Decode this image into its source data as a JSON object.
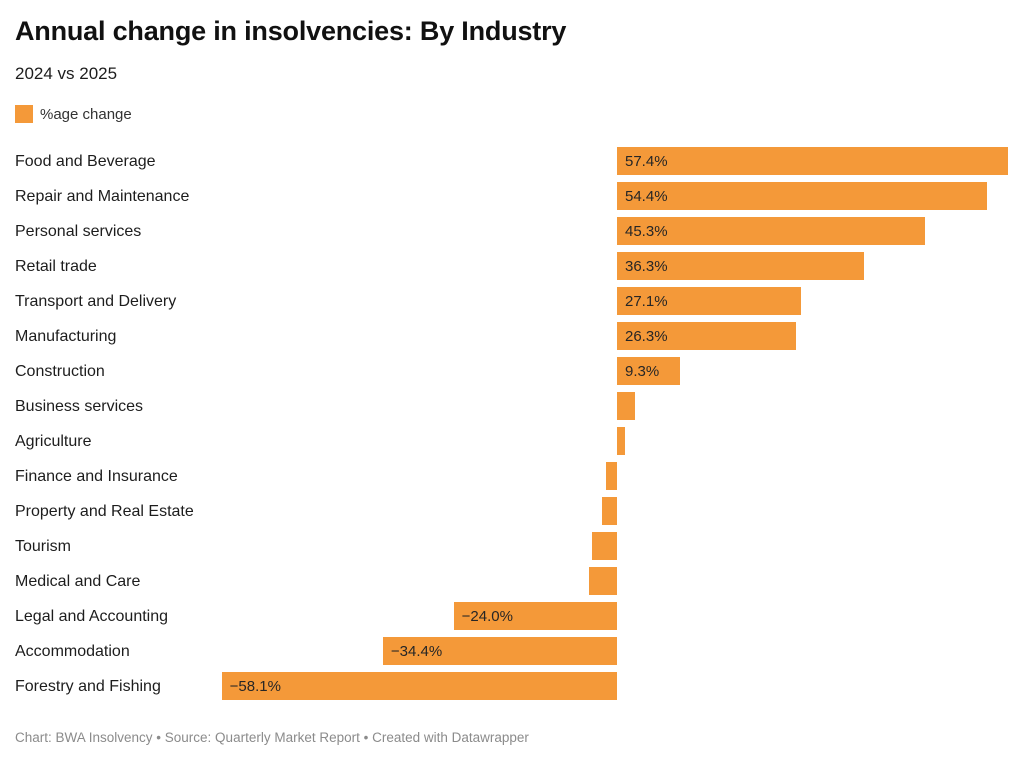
{
  "footer": {
    "text": "Chart: BWA Insolvency • Source: Quarterly Market Report • Created with Datawrapper"
  },
  "chart_data": {
    "type": "bar",
    "orientation": "horizontal",
    "title": "Annual change in insolvencies: By Industry",
    "subtitle": "2024 vs 2025",
    "series": [
      {
        "name": "%age change",
        "color": "#F49939"
      }
    ],
    "categories": [
      "Food and Beverage",
      "Repair and Maintenance",
      "Personal services",
      "Retail trade",
      "Transport and Delivery",
      "Manufacturing",
      "Construction",
      "Business services",
      "Agriculture",
      "Finance and Insurance",
      "Property and Real Estate",
      "Tourism",
      "Medical and Care",
      "Legal and Accounting",
      "Accommodation",
      "Forestry and Fishing"
    ],
    "values": [
      57.4,
      54.4,
      45.3,
      36.3,
      27.1,
      26.3,
      9.3,
      2.6,
      1.2,
      -1.6,
      -2.2,
      -3.7,
      -4.1,
      -24.0,
      -34.4,
      -58.1
    ],
    "bar_labels": [
      "57.4%",
      "54.4%",
      "45.3%",
      "36.3%",
      "27.1%",
      "26.3%",
      "9.3%",
      "",
      "",
      "",
      "",
      "",
      "",
      "−24.0%",
      "−34.4%",
      "−58.1%"
    ],
    "value_unit": "%",
    "xlim": [
      -60,
      60
    ],
    "grid": false,
    "axis_ticks_hidden": true,
    "value_label_position": "inside-start",
    "legend_position": "top-left"
  }
}
